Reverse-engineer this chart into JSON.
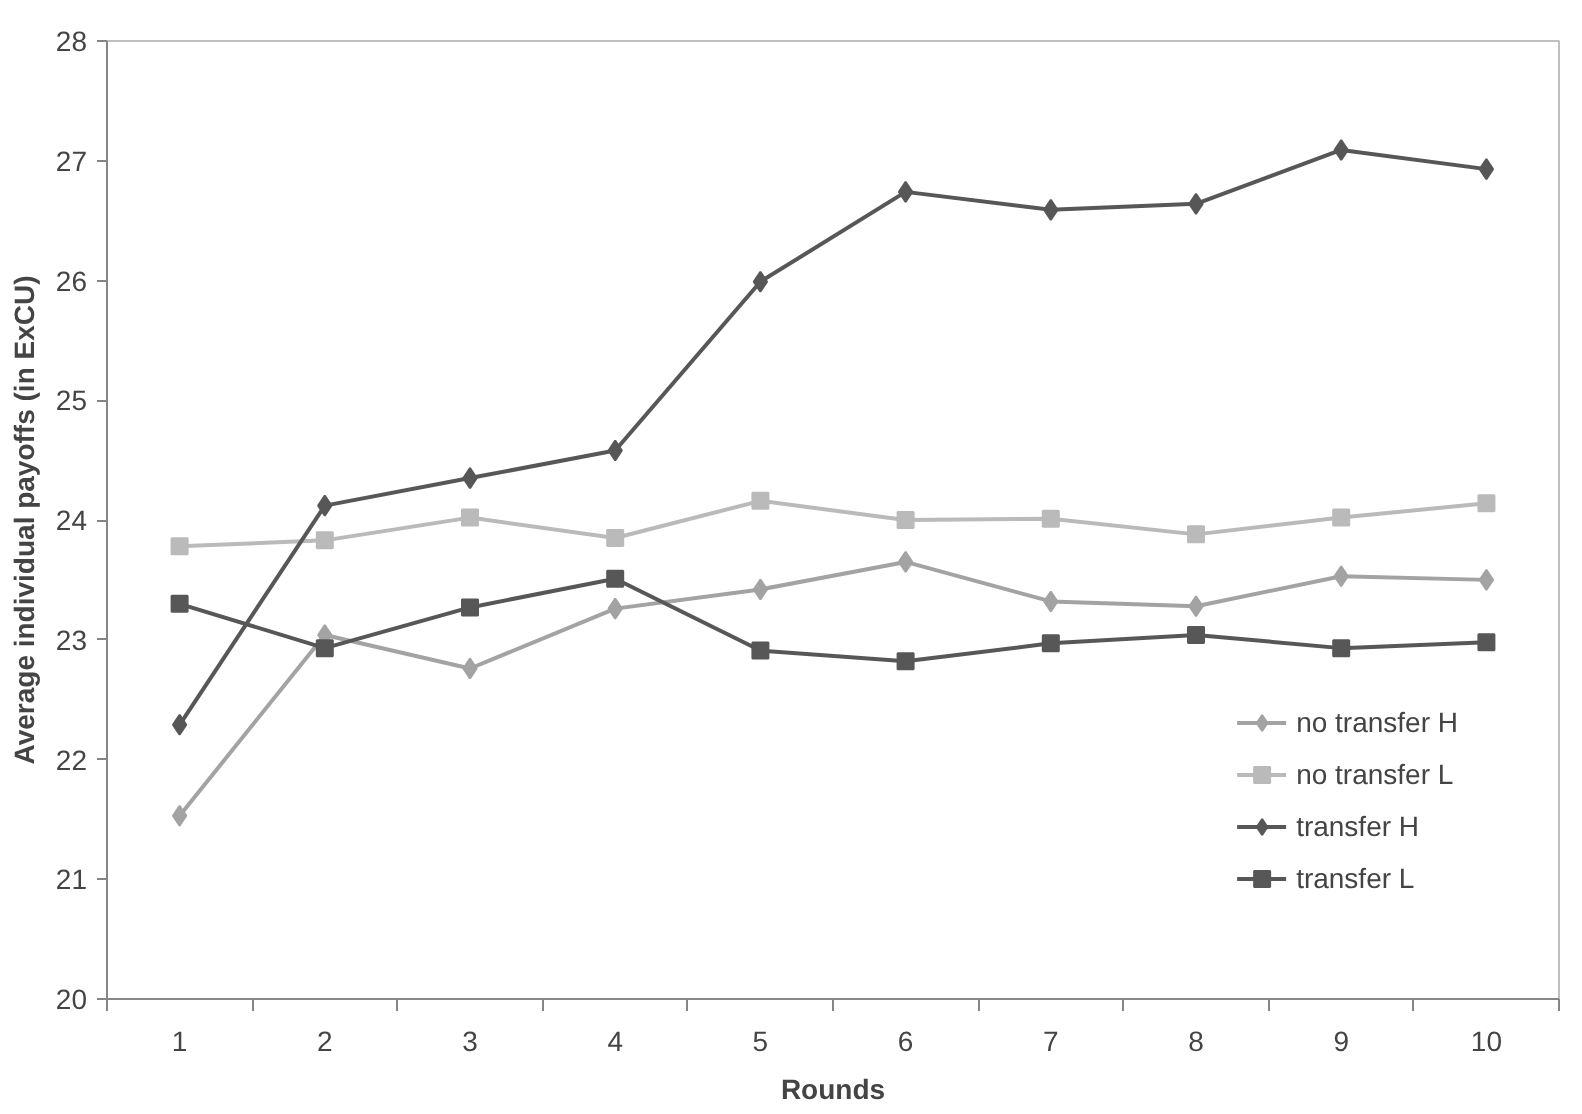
{
  "chart_data": {
    "type": "line",
    "xlabel": "Rounds",
    "ylabel": "Average individual payoffs (in ExCU)",
    "categories": [
      "1",
      "2",
      "3",
      "4",
      "5",
      "6",
      "7",
      "8",
      "9",
      "10"
    ],
    "ylim": [
      20,
      28
    ],
    "yticks": [
      20,
      21,
      22,
      23,
      24,
      25,
      26,
      27,
      28
    ],
    "grid": false,
    "legend": "bottom right",
    "line_style": "solid",
    "series": [
      {
        "name": "no transfer H",
        "color": "#a3a3a3",
        "marker": "diamond",
        "values": [
          21.53,
          23.04,
          22.76,
          23.26,
          23.42,
          23.65,
          23.32,
          23.28,
          23.53,
          23.5
        ]
      },
      {
        "name": "no transfer L",
        "color": "#bababa",
        "marker": "square",
        "values": [
          23.78,
          23.83,
          24.02,
          23.85,
          24.16,
          24.0,
          24.01,
          23.88,
          24.02,
          24.14
        ]
      },
      {
        "name": "transfer H",
        "color": "#575757",
        "marker": "diamond",
        "values": [
          22.29,
          24.12,
          24.35,
          24.58,
          25.99,
          26.74,
          26.59,
          26.64,
          27.09,
          26.93
        ]
      },
      {
        "name": "transfer L",
        "color": "#575757",
        "marker": "square",
        "values": [
          23.3,
          22.93,
          23.27,
          23.51,
          22.91,
          22.82,
          22.97,
          23.04,
          22.93,
          22.98
        ]
      }
    ]
  }
}
